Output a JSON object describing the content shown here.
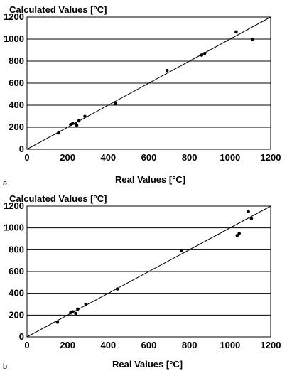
{
  "chart_data": [
    {
      "panel_label": "a",
      "type": "scatter",
      "title": "Calculated Values [°C]",
      "xlabel": "Real Values [°C]",
      "ylabel": "Calculated Values [°C]",
      "xlim": [
        0,
        1200
      ],
      "ylim": [
        0,
        1200
      ],
      "xticks": [
        "0",
        "200",
        "400",
        "600",
        "800",
        "1000",
        "1200"
      ],
      "yticks": [
        "0",
        "200",
        "400",
        "600",
        "800",
        "1000",
        "1200"
      ],
      "grid": "horizontal",
      "reference_line": [
        [
          0,
          0
        ],
        [
          1200,
          1200
        ]
      ],
      "points": [
        {
          "x": 155,
          "y": 148
        },
        {
          "x": 215,
          "y": 225
        },
        {
          "x": 225,
          "y": 235
        },
        {
          "x": 240,
          "y": 230
        },
        {
          "x": 245,
          "y": 218
        },
        {
          "x": 255,
          "y": 258
        },
        {
          "x": 285,
          "y": 298
        },
        {
          "x": 435,
          "y": 415
        },
        {
          "x": 690,
          "y": 715
        },
        {
          "x": 860,
          "y": 855
        },
        {
          "x": 875,
          "y": 870
        },
        {
          "x": 1030,
          "y": 1065
        },
        {
          "x": 1110,
          "y": 998
        }
      ]
    },
    {
      "panel_label": "b",
      "type": "scatter",
      "title": "Calculated Values [°C]",
      "xlabel": "Real Values [°C]",
      "ylabel": "Calculated Values [°C]",
      "xlim": [
        0,
        1200
      ],
      "ylim": [
        0,
        1200
      ],
      "xticks": [
        "0",
        "200",
        "400",
        "600",
        "800",
        "1000",
        "1200"
      ],
      "yticks": [
        "0",
        "200",
        "400",
        "600",
        "800",
        "1000",
        "1200"
      ],
      "grid": "horizontal",
      "reference_line": [
        [
          0,
          0
        ],
        [
          1200,
          1200
        ]
      ],
      "points": [
        {
          "x": 150,
          "y": 135
        },
        {
          "x": 215,
          "y": 222
        },
        {
          "x": 225,
          "y": 230
        },
        {
          "x": 240,
          "y": 215
        },
        {
          "x": 250,
          "y": 255
        },
        {
          "x": 290,
          "y": 298
        },
        {
          "x": 445,
          "y": 440
        },
        {
          "x": 760,
          "y": 790
        },
        {
          "x": 1035,
          "y": 930
        },
        {
          "x": 1045,
          "y": 950
        },
        {
          "x": 1090,
          "y": 1150
        },
        {
          "x": 1105,
          "y": 1085
        }
      ]
    }
  ]
}
